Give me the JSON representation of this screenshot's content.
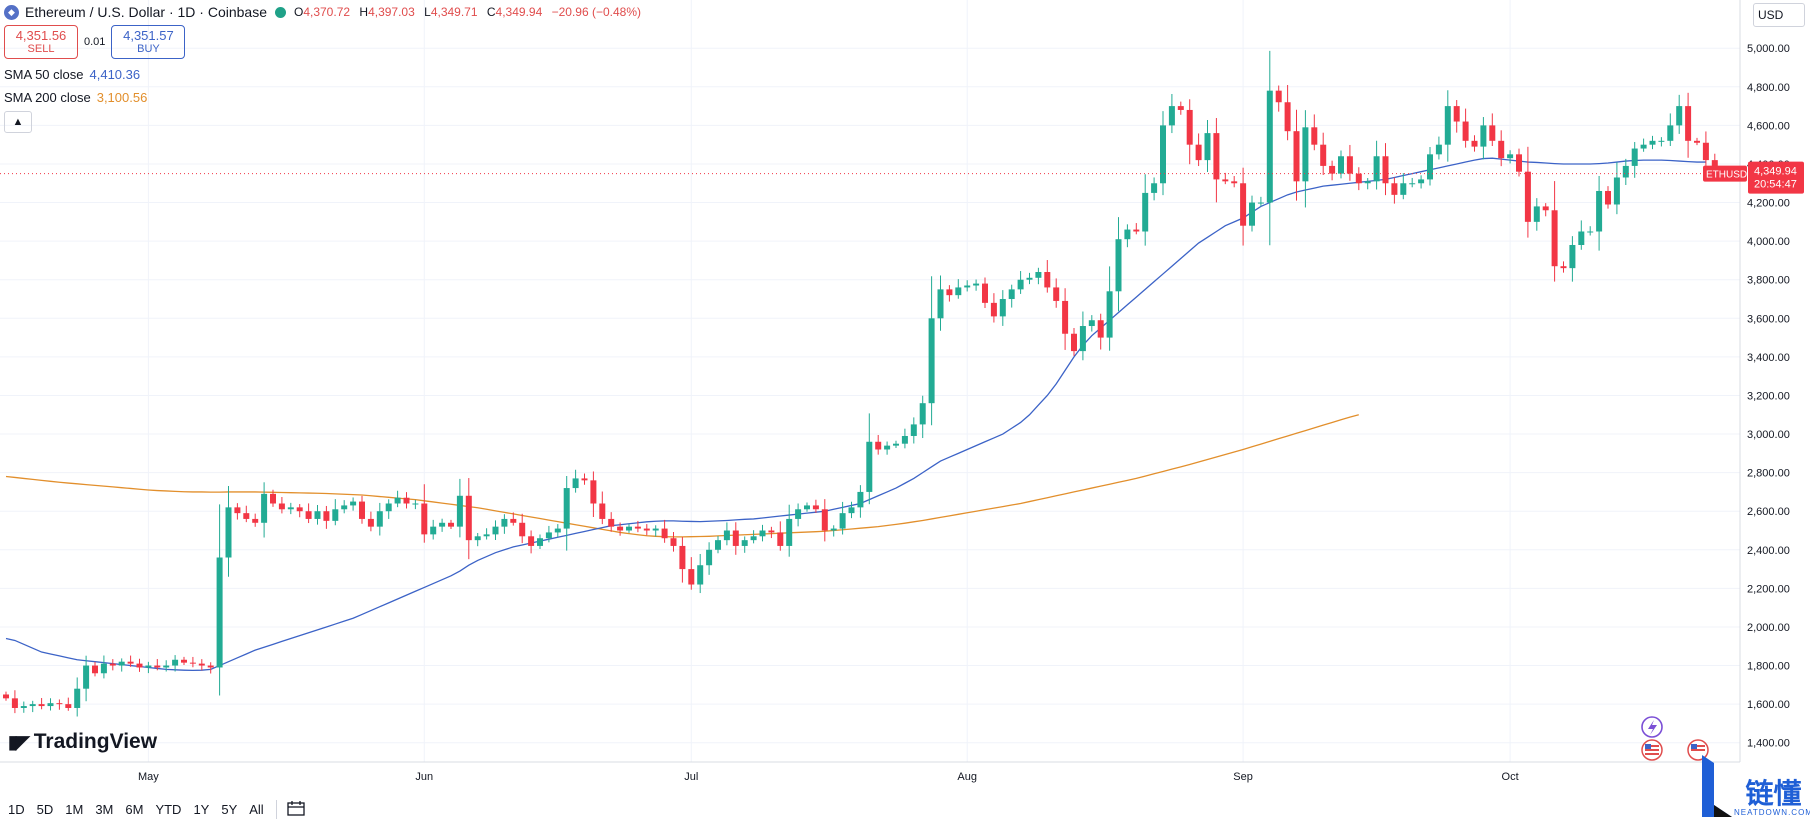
{
  "legend": {
    "symbol_title": "Ethereum / U.S. Dollar · 1D · Coinbase",
    "ohlc": {
      "o_label": "O",
      "o": "4,370.72",
      "h_label": "H",
      "h": "4,397.03",
      "l_label": "L",
      "l": "4,349.71",
      "c_label": "C",
      "c": "4,349.94",
      "change": "−20.96 (−0.48%)"
    },
    "sell_price": "4,351.56",
    "sell_label": "SELL",
    "spread": "0.01",
    "buy_price": "4,351.57",
    "buy_label": "BUY",
    "sma50_label": "SMA 50 close",
    "sma50_value": "4,410.36",
    "sma200_label": "SMA 200 close",
    "sma200_value": "3,100.56",
    "collapse_icon": "chevron-up-icon"
  },
  "currency": "USD",
  "brand": "TradingView",
  "ranges": [
    "1D",
    "5D",
    "1M",
    "3M",
    "6M",
    "YTD",
    "1Y",
    "5Y",
    "All"
  ],
  "price_tag": {
    "symbol": "ETHUSD",
    "price": "4,349.94",
    "countdown": "20:54:47"
  },
  "watermark": {
    "cn": "链懂",
    "en": "NEATDOWN.COM"
  },
  "colors": {
    "up": "#22ab94",
    "down": "#f23645",
    "sma50": "#3c63c7",
    "sma200": "#e28f2c",
    "grid": "#f0f3fa"
  },
  "chart_data": {
    "type": "candlestick",
    "title": "Ethereum / U.S. Dollar · 1D · Coinbase",
    "y_ticks": [
      1400,
      1600,
      1800,
      2000,
      2200,
      2400,
      2600,
      2800,
      3000,
      3200,
      3400,
      3600,
      3800,
      4000,
      4200,
      4400,
      4600,
      4800,
      5000
    ],
    "y_tick_labels": [
      "1,400.00",
      "1,600.00",
      "1,800.00",
      "2,000.00",
      "2,200.00",
      "2,400.00",
      "2,600.00",
      "2,800.00",
      "3,000.00",
      "3,200.00",
      "3,400.00",
      "3,600.00",
      "3,800.00",
      "4,000.00",
      "4,200.00",
      "4,400.00",
      "4,600.00",
      "4,800.00",
      "5,000.00"
    ],
    "ylim": [
      1300,
      5250
    ],
    "x_ticks": [
      {
        "label": "May",
        "day": 16
      },
      {
        "label": "Jun",
        "day": 47
      },
      {
        "label": "Jul",
        "day": 77
      },
      {
        "label": "Aug",
        "day": 108
      },
      {
        "label": "Sep",
        "day": 139
      },
      {
        "label": "Oct",
        "day": 169
      }
    ],
    "x_range_days": [
      0,
      196
    ],
    "closes": [
      1630,
      1580,
      1590,
      1600,
      1590,
      1605,
      1600,
      1580,
      1680,
      1800,
      1760,
      1810,
      1800,
      1820,
      1810,
      1790,
      1800,
      1790,
      1800,
      1830,
      1815,
      1810,
      1800,
      1790,
      2360,
      2620,
      2590,
      2560,
      2540,
      2690,
      2640,
      2610,
      2620,
      2600,
      2560,
      2600,
      2550,
      2610,
      2630,
      2650,
      2560,
      2520,
      2600,
      2640,
      2670,
      2640,
      2640,
      2480,
      2520,
      2540,
      2520,
      2680,
      2450,
      2470,
      2480,
      2520,
      2560,
      2540,
      2470,
      2420,
      2460,
      2490,
      2510,
      2720,
      2770,
      2760,
      2640,
      2560,
      2520,
      2500,
      2520,
      2510,
      2500,
      2510,
      2460,
      2420,
      2300,
      2220,
      2320,
      2400,
      2450,
      2500,
      2420,
      2450,
      2470,
      2500,
      2490,
      2420,
      2560,
      2610,
      2630,
      2610,
      2500,
      2510,
      2590,
      2620,
      2700,
      2960,
      2920,
      2940,
      2950,
      2990,
      3050,
      3160,
      3600,
      3750,
      3720,
      3760,
      3770,
      3780,
      3680,
      3610,
      3700,
      3750,
      3800,
      3810,
      3840,
      3760,
      3690,
      3520,
      3430,
      3560,
      3590,
      3500,
      3740,
      4010,
      4060,
      4050,
      4250,
      4300,
      4600,
      4700,
      4680,
      4500,
      4420,
      4560,
      4320,
      4310,
      4300,
      4080,
      4200,
      4200,
      4780,
      4720,
      4570,
      4310,
      4590,
      4500,
      4390,
      4350,
      4440,
      4350,
      4300,
      4310,
      4440,
      4300,
      4240,
      4300,
      4300,
      4320,
      4450,
      4500,
      4700,
      4620,
      4520,
      4490,
      4600,
      4520,
      4430,
      4450,
      4360,
      4100,
      4180,
      4160,
      3870,
      3860,
      3980,
      4050,
      4050,
      4260,
      4190,
      4330,
      4390,
      4480,
      4500,
      4520,
      4520,
      4600,
      4700,
      4520,
      4510,
      4420,
      4370,
      4350
    ],
    "sma50": [
      1940,
      1930,
      1910,
      1890,
      1870,
      1860,
      1850,
      1840,
      1830,
      1825,
      1820,
      1815,
      1810,
      1805,
      1800,
      1795,
      1790,
      1785,
      1780,
      1778,
      1776,
      1775,
      1776,
      1780,
      1800,
      1820,
      1840,
      1860,
      1880,
      1895,
      1910,
      1925,
      1940,
      1955,
      1970,
      1985,
      2000,
      2015,
      2030,
      2045,
      2065,
      2085,
      2105,
      2125,
      2145,
      2165,
      2185,
      2205,
      2225,
      2245,
      2265,
      2290,
      2320,
      2345,
      2365,
      2385,
      2400,
      2415,
      2425,
      2435,
      2445,
      2455,
      2465,
      2475,
      2485,
      2495,
      2505,
      2515,
      2525,
      2530,
      2535,
      2540,
      2545,
      2548,
      2550,
      2550,
      2548,
      2547,
      2546,
      2548,
      2550,
      2552,
      2555,
      2558,
      2560,
      2565,
      2570,
      2575,
      2580,
      2585,
      2590,
      2595,
      2600,
      2610,
      2620,
      2630,
      2640,
      2660,
      2680,
      2700,
      2720,
      2745,
      2770,
      2800,
      2830,
      2860,
      2880,
      2900,
      2920,
      2940,
      2960,
      2980,
      3000,
      3030,
      3060,
      3100,
      3150,
      3200,
      3260,
      3330,
      3400,
      3460,
      3510,
      3550,
      3590,
      3630,
      3670,
      3710,
      3750,
      3790,
      3830,
      3870,
      3910,
      3950,
      3990,
      4020,
      4050,
      4080,
      4100,
      4120,
      4150,
      4180,
      4200,
      4220,
      4240,
      4255,
      4265,
      4275,
      4285,
      4290,
      4295,
      4300,
      4305,
      4310,
      4315,
      4320,
      4330,
      4340,
      4350,
      4360,
      4370,
      4380,
      4390,
      4400,
      4410,
      4420,
      4428,
      4430,
      4425,
      4420,
      4415,
      4410,
      4408,
      4405,
      4402,
      4400,
      4400,
      4400,
      4400,
      4402,
      4405,
      4410,
      4415,
      4418,
      4420,
      4420,
      4420,
      4418,
      4415,
      4412,
      4410,
      4410
    ],
    "sma200": [
      2780,
      2775,
      2770,
      2765,
      2760,
      2755,
      2750,
      2746,
      2742,
      2738,
      2734,
      2730,
      2726,
      2722,
      2718,
      2714,
      2710,
      2707,
      2705,
      2703,
      2701,
      2700,
      2700,
      2699,
      2699,
      2700,
      2700,
      2700,
      2700,
      2699,
      2698,
      2697,
      2696,
      2695,
      2694,
      2693,
      2692,
      2690,
      2688,
      2686,
      2684,
      2680,
      2676,
      2672,
      2668,
      2664,
      2660,
      2654,
      2648,
      2642,
      2636,
      2630,
      2624,
      2618,
      2610,
      2602,
      2594,
      2586,
      2578,
      2570,
      2562,
      2554,
      2546,
      2538,
      2530,
      2522,
      2514,
      2506,
      2498,
      2490,
      2484,
      2478,
      2473,
      2470,
      2468,
      2467,
      2467,
      2468,
      2469,
      2470,
      2472,
      2474,
      2476,
      2478,
      2480,
      2482,
      2484,
      2486,
      2488,
      2490,
      2492,
      2494,
      2496,
      2500,
      2504,
      2508,
      2512,
      2516,
      2520,
      2526,
      2532,
      2538,
      2545,
      2552,
      2560,
      2568,
      2576,
      2584,
      2592,
      2600,
      2608,
      2616,
      2624,
      2632,
      2640,
      2650,
      2660,
      2670,
      2680,
      2690,
      2700,
      2710,
      2720,
      2730,
      2740,
      2750,
      2760,
      2770,
      2782,
      2794,
      2806,
      2818,
      2830,
      2842,
      2855,
      2868,
      2881,
      2894,
      2907,
      2920,
      2934,
      2948,
      2962,
      2976,
      2990,
      3004,
      3018,
      3032,
      3046,
      3060,
      3074,
      3088,
      3100
    ]
  }
}
